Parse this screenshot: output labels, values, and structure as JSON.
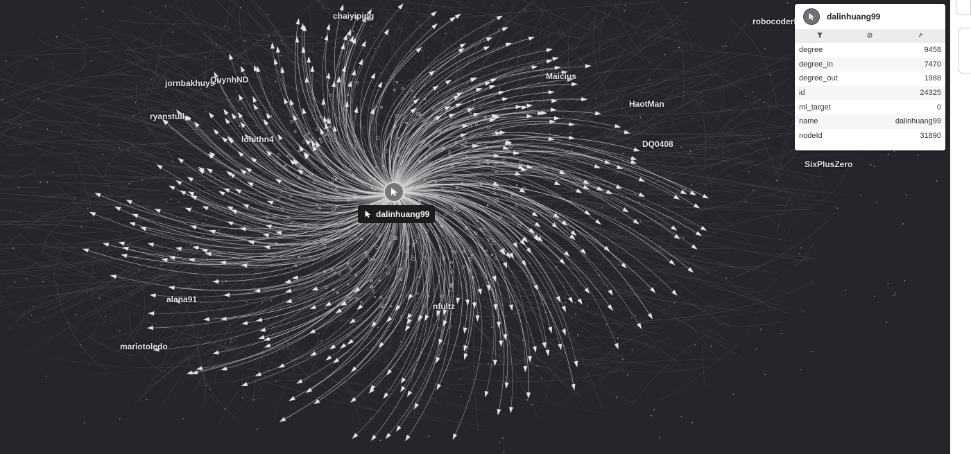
{
  "graph": {
    "focus_node": "dalinhuang99",
    "labels": [
      {
        "key": "chaiyiping",
        "text": "chaiyiping"
      },
      {
        "key": "robocoderh",
        "text": "robocoderh"
      },
      {
        "key": "jornbakhuys",
        "text": "jornbakhuys"
      },
      {
        "key": "QuynhND",
        "text": "QuynhND"
      },
      {
        "key": "Maicius",
        "text": "Maicius"
      },
      {
        "key": "ryanstull",
        "text": "ryanstull"
      },
      {
        "key": "HaotMan",
        "text": "HaotMan"
      },
      {
        "key": "lohithn4",
        "text": "lohithn4"
      },
      {
        "key": "DQ0408",
        "text": "DQ0408"
      },
      {
        "key": "SixPlusZero",
        "text": "SixPlusZero"
      },
      {
        "key": "alana91",
        "text": "alana91"
      },
      {
        "key": "nfultz",
        "text": "nfultz"
      },
      {
        "key": "mariotoledo",
        "text": "mariotoledo"
      }
    ],
    "colors": {
      "background": "#26252b",
      "edge": "#d9d9d9",
      "node": "#cfcfcf"
    }
  },
  "panel": {
    "title": "dalinhuang99",
    "toolbar": {
      "filter_icon": "filter-icon",
      "hide_icon": "hide-icon",
      "pin_icon": "pin-icon"
    },
    "properties": [
      {
        "key": "degree",
        "value": "9458"
      },
      {
        "key": "degree_in",
        "value": "7470"
      },
      {
        "key": "degree_out",
        "value": "1988"
      },
      {
        "key": "id",
        "value": "24325"
      },
      {
        "key": "ml_target",
        "value": "0"
      },
      {
        "key": "name",
        "value": "dalinhuang99"
      },
      {
        "key": "nodeId",
        "value": "31890"
      }
    ]
  }
}
